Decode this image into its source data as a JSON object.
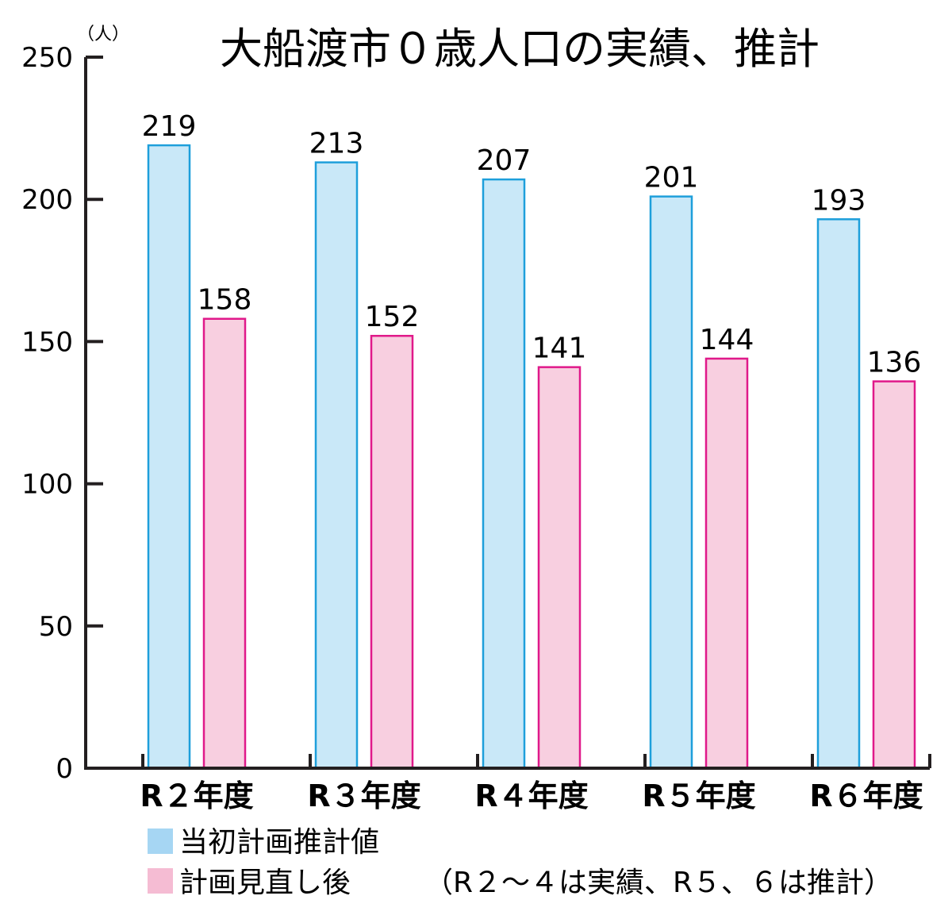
{
  "chart_data": {
    "type": "bar",
    "title": "大船渡市０歳人口の実績、推計",
    "unit_label": "（人）",
    "categories": [
      "R２年度",
      "R３年度",
      "R４年度",
      "R５年度",
      "R６年度"
    ],
    "series": [
      {
        "name": "当初計画推計値",
        "values": [
          219,
          213,
          207,
          201,
          193
        ],
        "fill": "#c9e8f8",
        "stroke": "#1e9fdb"
      },
      {
        "name": "計画見直し後",
        "values": [
          158,
          152,
          141,
          144,
          136
        ],
        "fill": "#f8cfe0",
        "stroke": "#e0198a"
      }
    ],
    "ylim": [
      0,
      250
    ],
    "yticks": [
      0,
      50,
      100,
      150,
      200,
      250
    ],
    "legend_position": "bottom-left",
    "legend_swatch_colors": [
      "#a6d6f3",
      "#f5bcd3"
    ],
    "note": "（R２〜４は実績、R５、６は推計）",
    "grid": false
  }
}
